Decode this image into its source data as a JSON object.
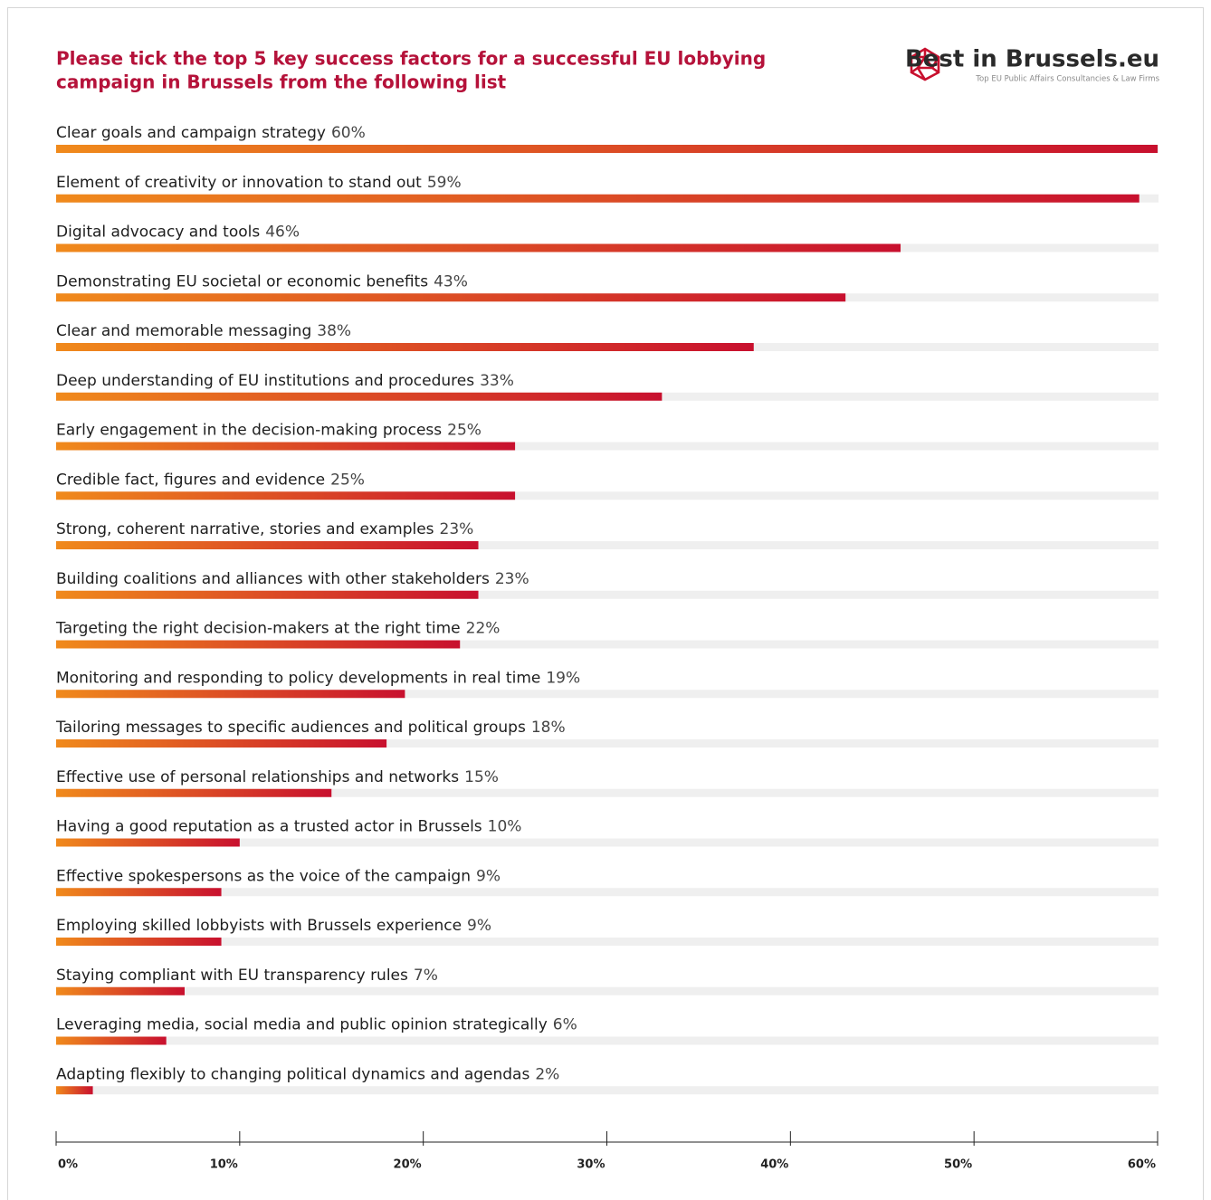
{
  "chart_data": {
    "type": "bar",
    "orientation": "horizontal",
    "title": [
      "Please tick the top 5 key success factors for a successful EU lobbying",
      "campaign in Brussels from the following list"
    ],
    "brand": "Best in Brussels.eu",
    "brand_tagline": "Top EU Public Affairs Consultancies & Law Firms",
    "categories": [
      "Clear goals and campaign strategy",
      "Element of creativity or innovation to stand out",
      "Digital advocacy and tools",
      "Demonstrating EU societal or economic benefits",
      "Clear and memorable messaging",
      "Deep understanding of EU institutions and procedures",
      "Early engagement in the decision-making process",
      "Credible fact, figures and evidence",
      "Strong, coherent narrative, stories and examples",
      "Building coalitions and alliances with other stakeholders",
      "Targeting the right decision-makers at the right time",
      "Monitoring and responding to policy developments in real time",
      "Tailoring messages to specific audiences and political groups",
      "Effective use of personal relationships and networks",
      "Having a good reputation as a trusted actor in Brussels",
      "Effective spokespersons as the voice of the campaign",
      "Employing skilled lobbyists with Brussels experience",
      "Staying compliant with EU transparency rules",
      "Leveraging media, social media and public opinion strategically",
      "Adapting flexibly to changing political dynamics and agendas"
    ],
    "values": [
      60,
      59,
      46,
      43,
      38,
      33,
      25,
      25,
      23,
      23,
      22,
      19,
      18,
      15,
      10,
      9,
      9,
      7,
      6,
      2
    ],
    "value_labels": [
      "60%",
      "59%",
      "46%",
      "43%",
      "38%",
      "33%",
      "25%",
      "25%",
      "23%",
      "23%",
      "22%",
      "19%",
      "18%",
      "15%",
      "10%",
      "9%",
      "9%",
      "7%",
      "6%",
      "2%"
    ],
    "color": [
      "#f08a1c",
      "#c8102e"
    ],
    "track_color": "#efefef",
    "xlim": [
      0,
      60
    ],
    "xticks": [
      {
        "value": 0,
        "label": "0%"
      },
      {
        "value": 10,
        "label": "10%"
      },
      {
        "value": 20,
        "label": "20%"
      },
      {
        "value": 30,
        "label": "30%"
      },
      {
        "value": 40,
        "label": "40%"
      },
      {
        "value": 50,
        "label": "50%"
      },
      {
        "value": 60,
        "label": "60%"
      }
    ]
  }
}
